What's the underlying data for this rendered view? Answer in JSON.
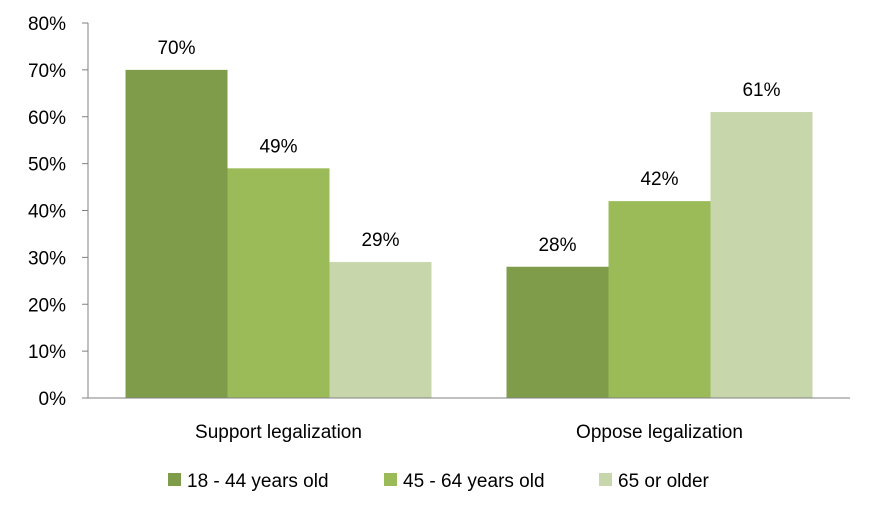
{
  "chart_data": {
    "type": "bar",
    "title": "",
    "xlabel": "",
    "ylabel": "",
    "categories": [
      "Support legalization",
      "Oppose legalization"
    ],
    "series": [
      {
        "name": "18 - 44 years old",
        "values": [
          70,
          28
        ],
        "labels": [
          "70%",
          "28%"
        ],
        "color": "#7f9c4b"
      },
      {
        "name": "45 - 64 years old",
        "values": [
          49,
          42
        ],
        "labels": [
          "49%",
          "42%"
        ],
        "color": "#9bbb59"
      },
      {
        "name": "65 or older",
        "values": [
          29,
          61
        ],
        "labels": [
          "29%",
          "61%"
        ],
        "color": "#c7d6ab"
      }
    ],
    "ylim": [
      0,
      80
    ],
    "yticks": [
      0,
      10,
      20,
      30,
      40,
      50,
      60,
      70,
      80
    ],
    "ytick_labels": [
      "0%",
      "10%",
      "20%",
      "30%",
      "40%",
      "50%",
      "60%",
      "70%",
      "80%"
    ],
    "grid": false,
    "legend_position": "bottom"
  }
}
